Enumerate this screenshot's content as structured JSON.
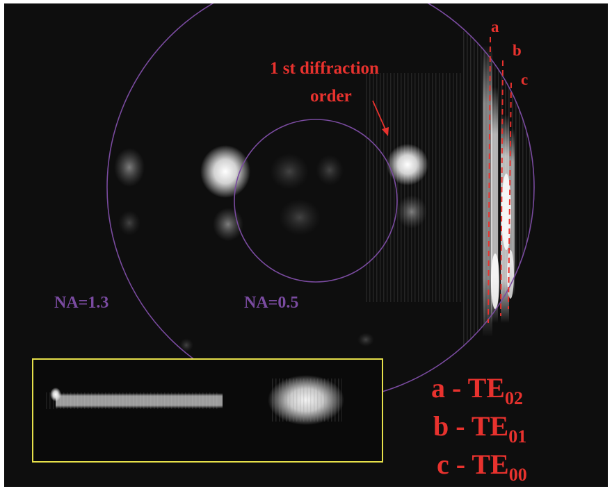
{
  "annotations": {
    "diffraction_line1": "1 st diffraction",
    "diffraction_line2": "order",
    "na_outer": "NA=1.3",
    "na_inner": "NA=0.5",
    "line_a": "a",
    "line_b": "b",
    "line_c": "c"
  },
  "legend": {
    "a_prefix": "a - TE",
    "a_sub": "02",
    "b_prefix": "b - TE",
    "b_sub": "01",
    "c_prefix": "c - TE",
    "c_sub": "00"
  },
  "colors": {
    "background": "#0e0e0e",
    "annotation_red": "#e8322e",
    "na_circle_purple": "#7a4ba0",
    "inset_border_yellow": "#e6e04a"
  }
}
